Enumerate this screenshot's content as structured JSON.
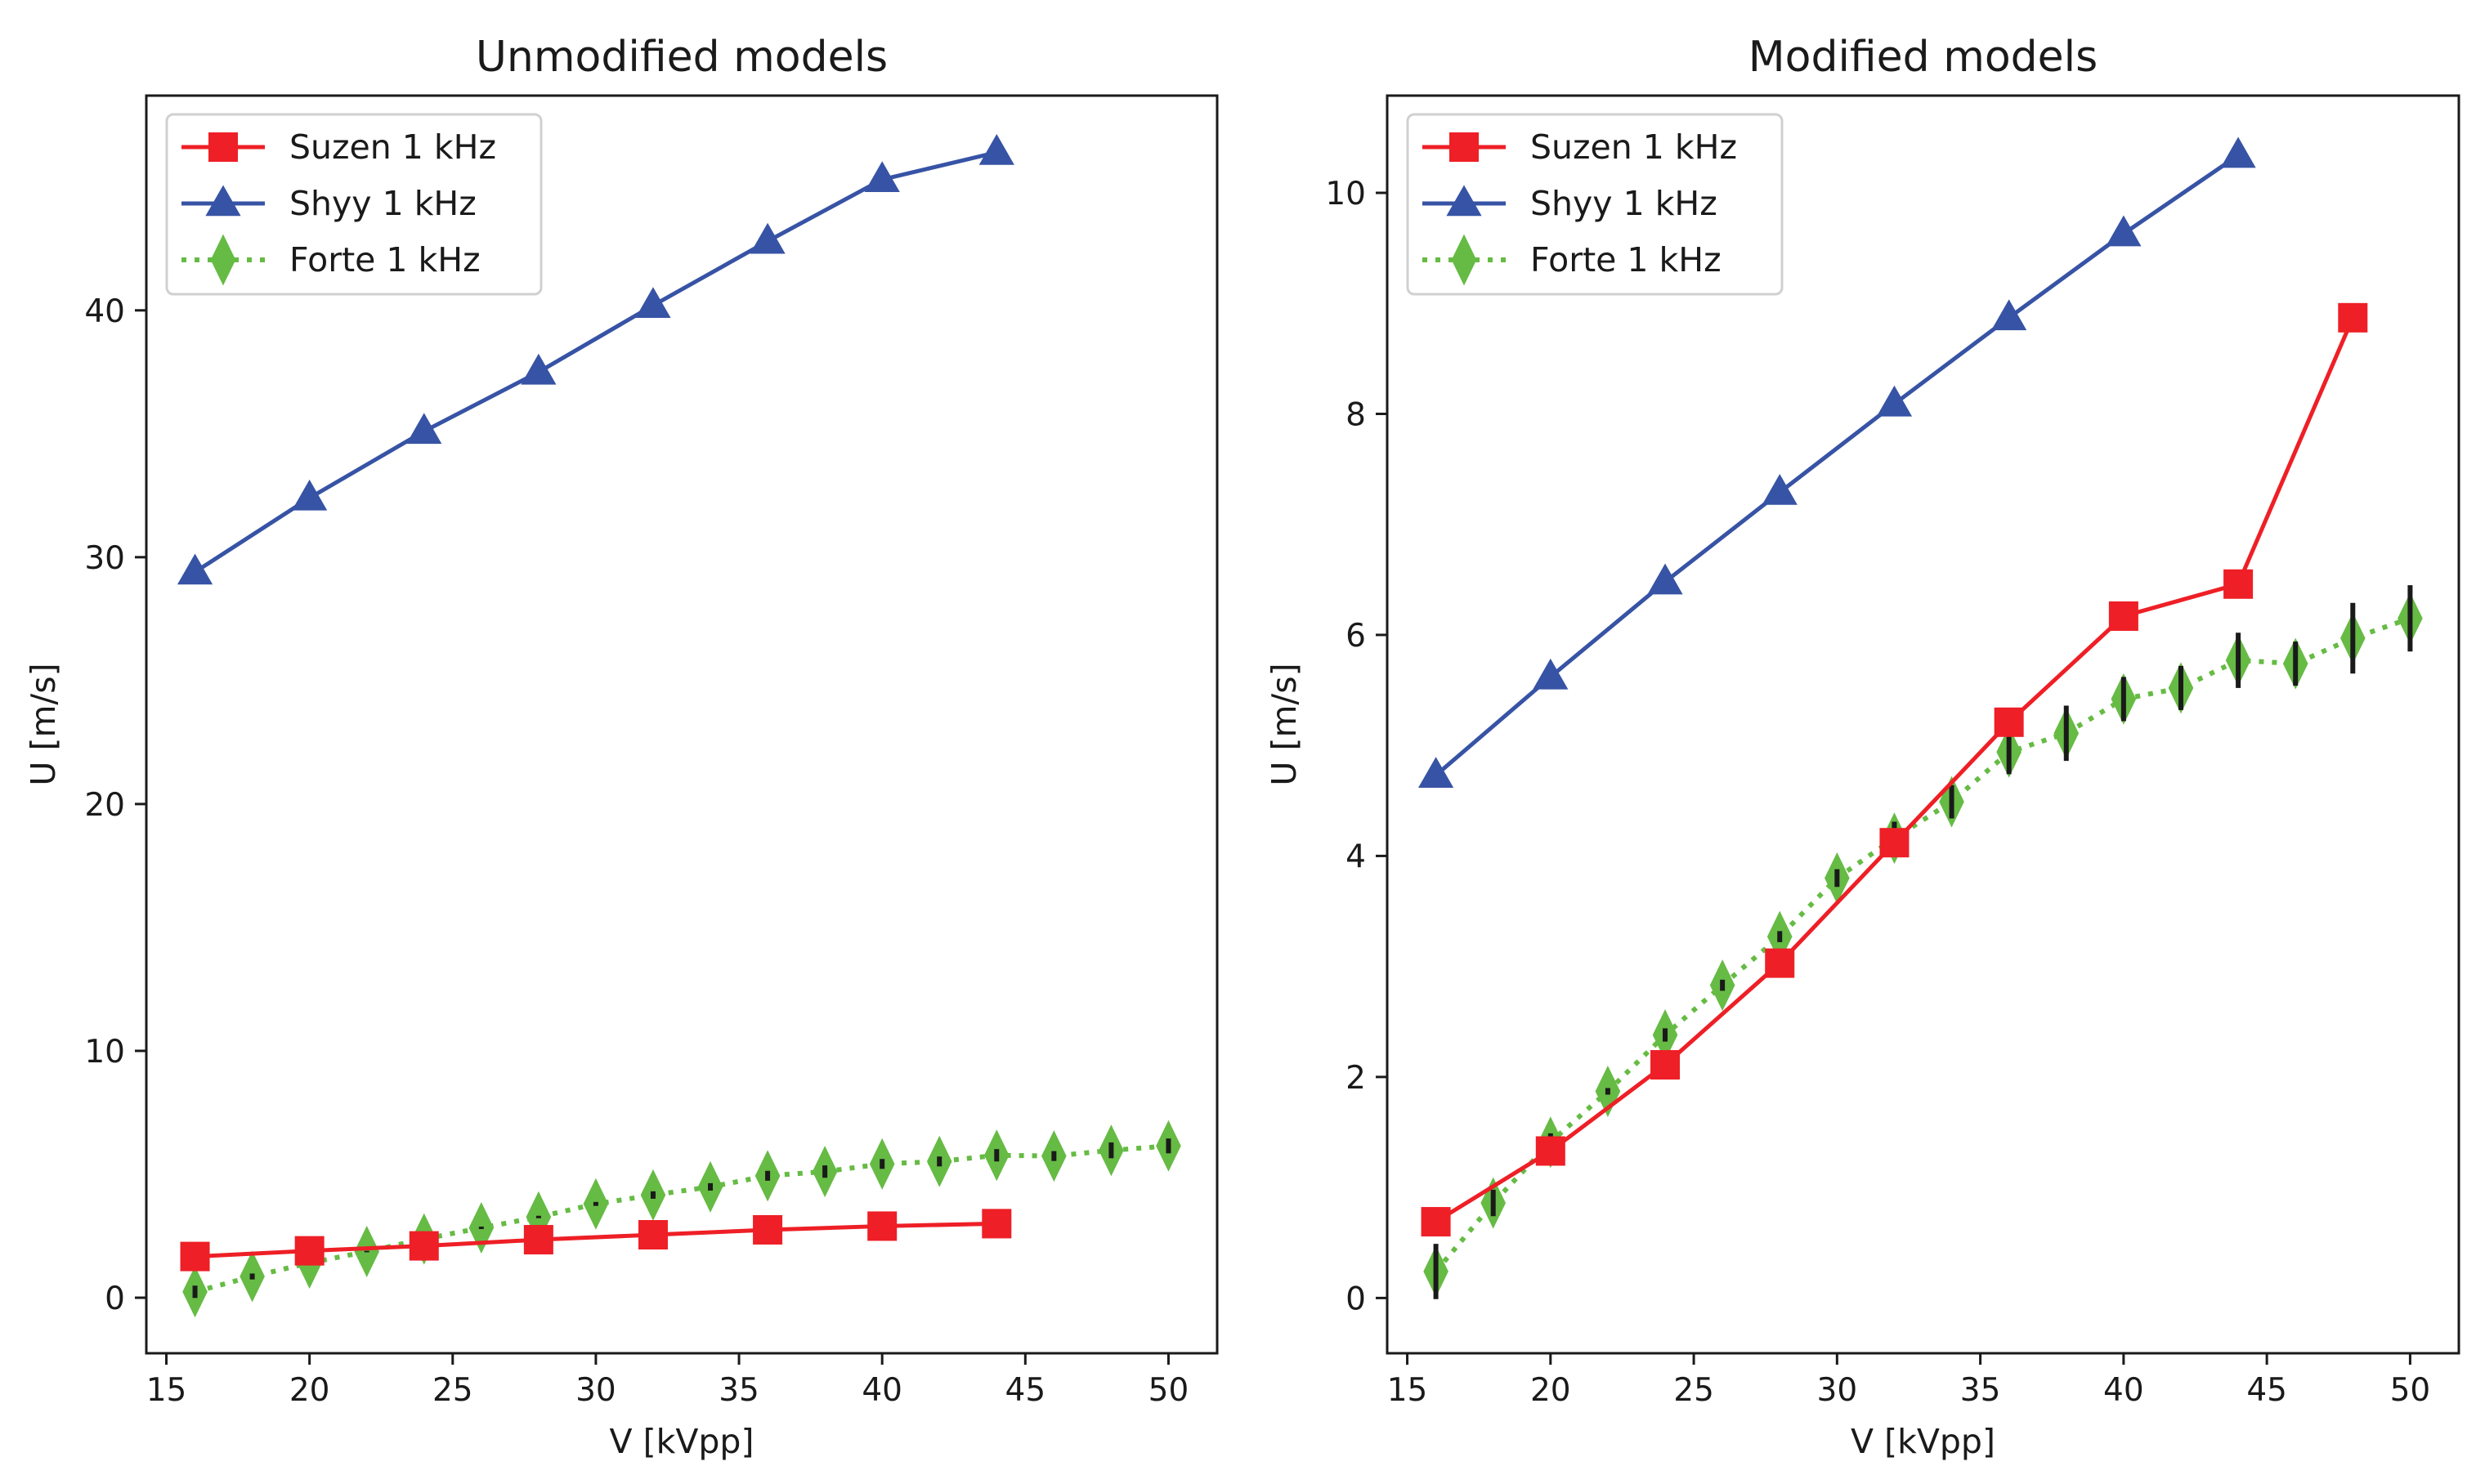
{
  "chart_data": [
    {
      "type": "line",
      "title": "Unmodified models",
      "xlabel": "V [kVpp]",
      "ylabel": "U [m/s]",
      "xlim": [
        14.3,
        51.7
      ],
      "ylim": [
        -2.25,
        48.7
      ],
      "xticks": [
        15,
        20,
        25,
        30,
        35,
        40,
        45,
        50
      ],
      "yticks": [
        0,
        10,
        20,
        30,
        40
      ],
      "legend_position": "top-left",
      "series": [
        {
          "name": "Suzen 1 kHz",
          "color": "#ee1f26",
          "marker": "square",
          "linestyle": "solid",
          "x": [
            16,
            20,
            24,
            28,
            32,
            36,
            40,
            44
          ],
          "y": [
            1.67,
            1.9,
            2.1,
            2.35,
            2.55,
            2.75,
            2.9,
            3.0
          ]
        },
        {
          "name": "Shyy 1 kHz",
          "color": "#3753a5",
          "marker": "triangle",
          "linestyle": "solid",
          "x": [
            16,
            20,
            24,
            28,
            32,
            36,
            40,
            44
          ],
          "y": [
            29.4,
            32.4,
            35.1,
            37.5,
            40.2,
            42.8,
            45.3,
            46.4
          ]
        },
        {
          "name": "Forte 1 kHz",
          "color": "#66bb44",
          "marker": "diamond",
          "linestyle": "dotted",
          "x": [
            16,
            18,
            20,
            22,
            24,
            26,
            28,
            30,
            32,
            34,
            36,
            38,
            40,
            42,
            44,
            46,
            48,
            50
          ],
          "y": [
            0.24,
            0.86,
            1.41,
            1.87,
            2.38,
            2.83,
            3.27,
            3.8,
            4.16,
            4.49,
            4.94,
            5.11,
            5.42,
            5.52,
            5.77,
            5.74,
            5.97,
            6.15
          ],
          "yerr": [
            0.25,
            0.12,
            0.08,
            0.03,
            0.06,
            0.05,
            0.05,
            0.08,
            0.15,
            0.15,
            0.2,
            0.25,
            0.2,
            0.2,
            0.25,
            0.2,
            0.32,
            0.3
          ]
        }
      ]
    },
    {
      "type": "line",
      "title": "Modified models",
      "xlabel": "V [kVpp]",
      "ylabel": "U [m/s]",
      "xlim": [
        14.3,
        51.7
      ],
      "ylim": [
        -0.5,
        10.88
      ],
      "xticks": [
        15,
        20,
        25,
        30,
        35,
        40,
        45,
        50
      ],
      "yticks": [
        0,
        2,
        4,
        6,
        8,
        10
      ],
      "legend_position": "top-left",
      "series": [
        {
          "name": "Suzen 1 kHz",
          "color": "#ee1f26",
          "marker": "square",
          "linestyle": "solid",
          "x": [
            16,
            20,
            24,
            28,
            32,
            36,
            40,
            44,
            48
          ],
          "y": [
            0.69,
            1.33,
            2.11,
            3.03,
            4.12,
            5.21,
            6.17,
            6.46,
            8.87
          ]
        },
        {
          "name": "Shyy 1 kHz",
          "color": "#3753a5",
          "marker": "triangle",
          "linestyle": "solid",
          "x": [
            16,
            20,
            24,
            28,
            32,
            36,
            40,
            44
          ],
          "y": [
            4.73,
            5.62,
            6.48,
            7.29,
            8.09,
            8.87,
            9.63,
            10.34
          ]
        },
        {
          "name": "Forte 1 kHz",
          "color": "#66bb44",
          "marker": "diamond",
          "linestyle": "dotted",
          "x": [
            16,
            18,
            20,
            22,
            24,
            26,
            28,
            30,
            32,
            34,
            36,
            38,
            40,
            42,
            44,
            46,
            48,
            50
          ],
          "y": [
            0.24,
            0.86,
            1.41,
            1.87,
            2.38,
            2.83,
            3.27,
            3.8,
            4.16,
            4.49,
            4.94,
            5.11,
            5.42,
            5.52,
            5.77,
            5.74,
            5.97,
            6.15
          ],
          "yerr": [
            0.25,
            0.12,
            0.08,
            0.03,
            0.06,
            0.05,
            0.05,
            0.08,
            0.15,
            0.15,
            0.2,
            0.25,
            0.2,
            0.2,
            0.25,
            0.2,
            0.32,
            0.3
          ]
        }
      ]
    }
  ]
}
